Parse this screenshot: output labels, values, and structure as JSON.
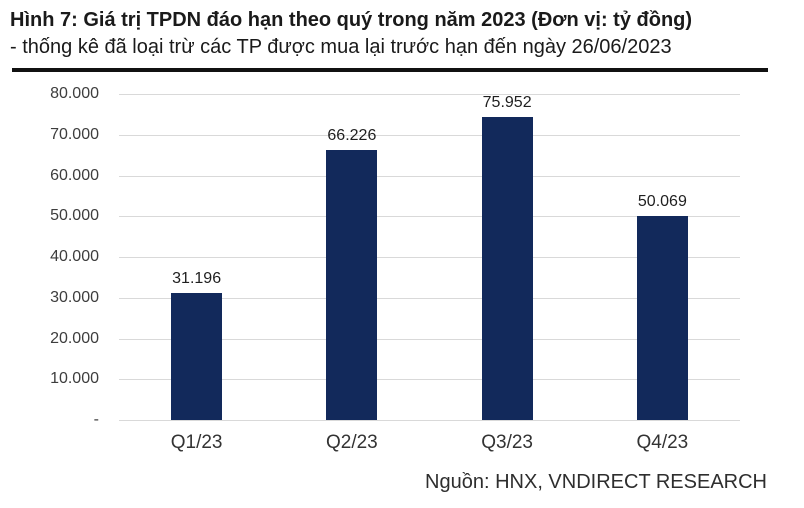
{
  "header": {
    "title_line1": "Hình 7: Giá trị TPDN đáo hạn theo quý trong năm 2023 (Đơn vị: tỷ đồng)",
    "title_line2": "- thống kê đã loại trừ các TP được mua lại trước hạn đến ngày 26/06/2023"
  },
  "chart_data": {
    "type": "bar",
    "title": "",
    "xlabel": "",
    "ylabel": "",
    "categories": [
      "Q1/23",
      "Q2/23",
      "Q3/23",
      "Q4/23"
    ],
    "values": [
      31196,
      66226,
      75952,
      50069
    ],
    "data_labels": [
      "31.196",
      "66.226",
      "75.952",
      "50.069"
    ],
    "y_ticks_top_to_bottom": [
      "80.000",
      "70.000",
      "60.000",
      "50.000",
      "40.000",
      "30.000",
      "20.000",
      "10.000",
      "-"
    ],
    "ylim": [
      0,
      80000
    ],
    "grid": true,
    "legend": "none",
    "bar_color": "#12295B",
    "gridline_color": "#D9D9D9"
  },
  "footer": {
    "source": "Nguồn: HNX, VNDIRECT RESEARCH"
  }
}
